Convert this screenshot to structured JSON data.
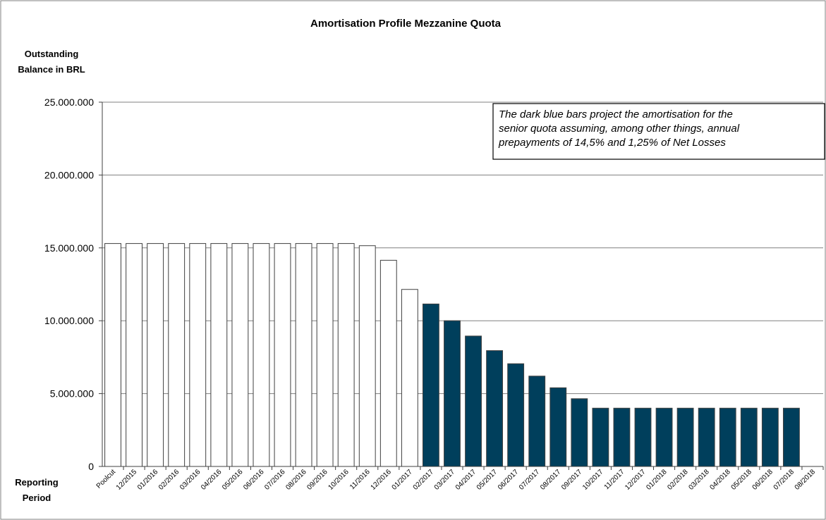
{
  "chart_data": {
    "type": "bar",
    "title": "Amortisation Profile Mezzanine Quota",
    "ylabel": [
      "Outstanding",
      "Balance in BRL"
    ],
    "xlabel": [
      "Reporting",
      "Period"
    ],
    "ylim": [
      0,
      25000000
    ],
    "yticks": [
      {
        "value": 0,
        "label": "0"
      },
      {
        "value": 5000000,
        "label": "5.000.000"
      },
      {
        "value": 10000000,
        "label": "10.000.000"
      },
      {
        "value": 15000000,
        "label": "15.000.000"
      },
      {
        "value": 20000000,
        "label": "20.000.000"
      },
      {
        "value": 25000000,
        "label": "25.000.000"
      }
    ],
    "grid": true,
    "categories": [
      "Poolcut",
      "12/2015",
      "01/2016",
      "02/2016",
      "03/2016",
      "04/2016",
      "05/2016",
      "06/2016",
      "07/2016",
      "08/2016",
      "09/2016",
      "10/2016",
      "11/2016",
      "12/2016",
      "01/2017",
      "02/2017",
      "03/2017",
      "04/2017",
      "05/2017",
      "06/2017",
      "07/2017",
      "08/2017",
      "09/2017",
      "10/2017",
      "11/2017",
      "12/2017",
      "01/2018",
      "02/2018",
      "03/2018",
      "04/2018",
      "05/2018",
      "06/2018",
      "07/2018",
      "08/2018"
    ],
    "values": [
      15300000,
      15300000,
      15300000,
      15300000,
      15300000,
      15300000,
      15300000,
      15300000,
      15300000,
      15300000,
      15300000,
      15300000,
      15150000,
      14150000,
      12150000,
      11150000,
      10000000,
      8950000,
      7950000,
      7050000,
      6200000,
      5400000,
      4650000,
      4000000,
      4000000,
      4000000,
      4000000,
      4000000,
      4000000,
      4000000,
      4000000,
      4000000,
      4000000,
      null
    ],
    "bar_style": [
      "actual",
      "actual",
      "actual",
      "actual",
      "actual",
      "actual",
      "actual",
      "actual",
      "actual",
      "actual",
      "actual",
      "actual",
      "actual",
      "actual",
      "actual",
      "projected",
      "projected",
      "projected",
      "projected",
      "projected",
      "projected",
      "projected",
      "projected",
      "projected",
      "projected",
      "projected",
      "projected",
      "projected",
      "projected",
      "projected",
      "projected",
      "projected",
      "projected",
      "projected"
    ],
    "colors": {
      "projected_fill": "#003F5C",
      "actual_fill": "#FFFFFF",
      "bar_stroke": "#404040",
      "gridline": "#808080",
      "axis": "#404040",
      "frame": "#808080"
    },
    "annotation": {
      "lines": [
        "The dark blue bars project the amortisation for the",
        "senior quota assuming, among other things, annual",
        "prepayments of 14,5% and 1,25% of Net Losses"
      ],
      "placement": "top-right"
    }
  }
}
